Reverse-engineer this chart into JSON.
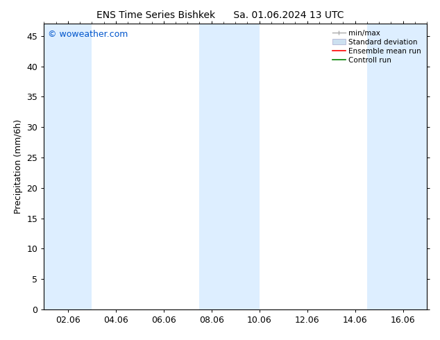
{
  "title_left": "ENS Time Series Bishkek",
  "title_right": "Sa. 01.06.2024 13 UTC",
  "ylabel": "Precipitation (mm/6h)",
  "watermark": "© woweather.com",
  "watermark_color": "#0055cc",
  "ylim": [
    0,
    47
  ],
  "yticks": [
    0,
    5,
    10,
    15,
    20,
    25,
    30,
    35,
    40,
    45
  ],
  "xtick_labels": [
    "02.06",
    "04.06",
    "06.06",
    "08.06",
    "10.06",
    "12.06",
    "14.06",
    "16.06"
  ],
  "xtick_positions": [
    2,
    4,
    6,
    8,
    10,
    12,
    14,
    16
  ],
  "xlim": [
    1,
    17
  ],
  "shaded_bands": [
    {
      "x_start": 1.0,
      "x_end": 3.0
    },
    {
      "x_start": 7.5,
      "x_end": 10.0
    },
    {
      "x_start": 14.5,
      "x_end": 17.0
    }
  ],
  "shade_color": "#ddeeff",
  "shade_alpha": 1.0,
  "bg_color": "#ffffff",
  "plot_bg_color": "#ffffff",
  "font_size": 9,
  "title_font_size": 10,
  "watermark_font_size": 9
}
